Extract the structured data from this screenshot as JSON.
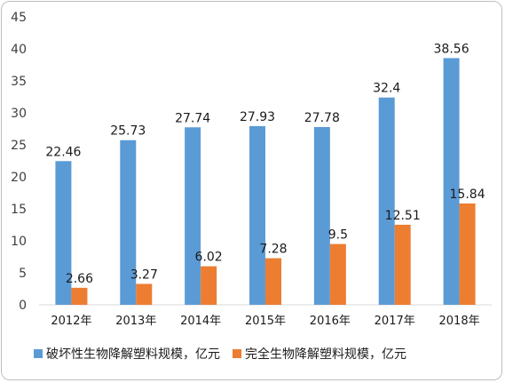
{
  "chart_data": {
    "type": "bar",
    "categories": [
      "2012年",
      "2013年",
      "2014年",
      "2015年",
      "2016年",
      "2017年",
      "2018年"
    ],
    "series": [
      {
        "name": "破坏性生物降解塑料规模，亿元",
        "values": [
          22.46,
          25.73,
          27.74,
          27.93,
          27.78,
          32.4,
          38.56
        ],
        "labels": [
          "22.46",
          "25.73",
          "27.74",
          "27.93",
          "27.78",
          "32.4",
          "38.56"
        ],
        "color": "#5b9bd5"
      },
      {
        "name": "完全生物降解塑料规模，亿元",
        "values": [
          2.66,
          3.27,
          6.02,
          7.28,
          9.5,
          12.51,
          15.84
        ],
        "labels": [
          "2.66",
          "3.27",
          "6.02",
          "7.28",
          "9.5",
          "12.51",
          "15.84"
        ],
        "color": "#ed7d31"
      }
    ],
    "ylim": [
      0,
      45
    ],
    "yticks": [
      0,
      5,
      10,
      15,
      20,
      25,
      30,
      35,
      40,
      45
    ],
    "ytick_labels": [
      "0",
      "5",
      "10",
      "15",
      "20",
      "25",
      "30",
      "35",
      "40",
      "45"
    ],
    "grid": false,
    "legend": "bottom"
  }
}
